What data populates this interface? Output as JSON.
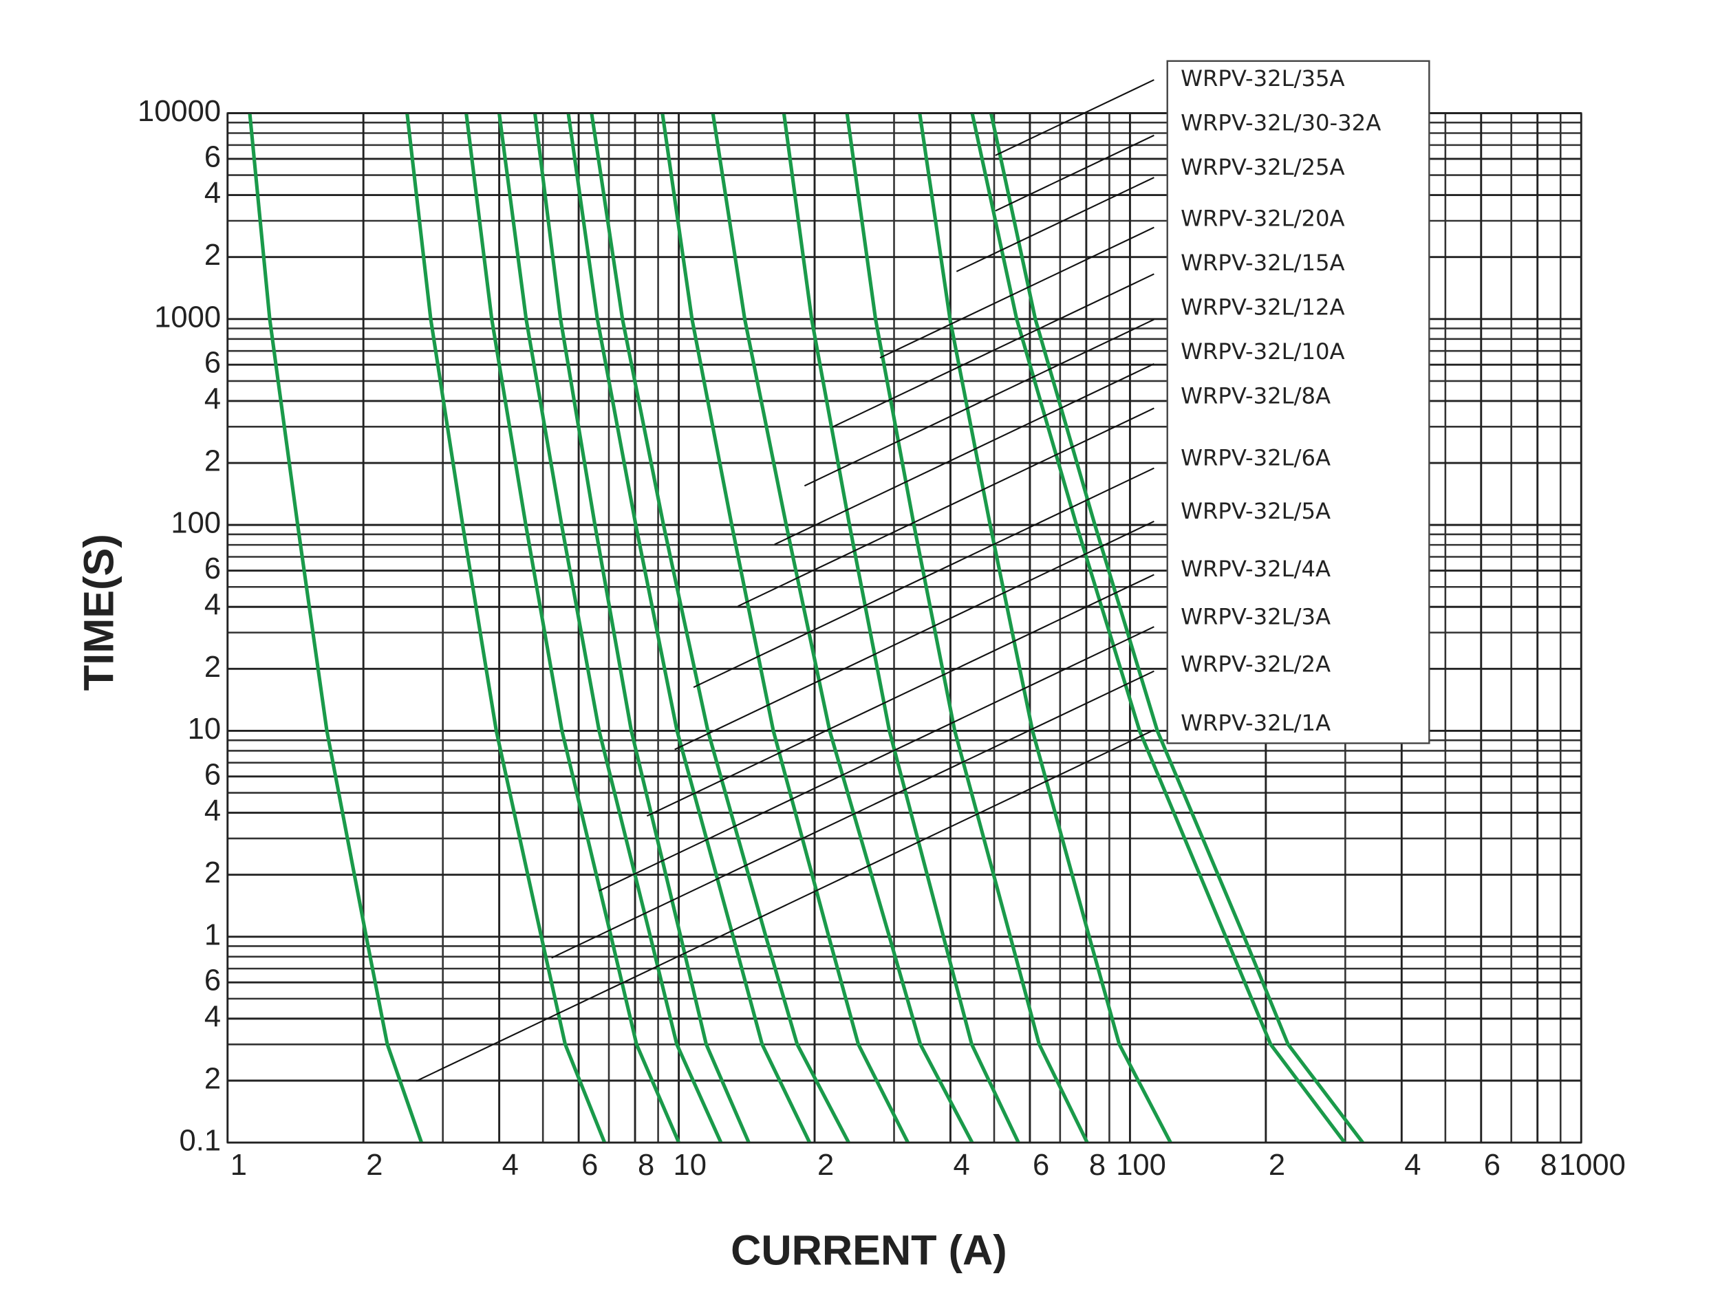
{
  "chart_data": {
    "type": "line",
    "xlabel": "CURRENT (A)",
    "ylabel": "TIME(S)",
    "xscale": "log",
    "yscale": "log",
    "grid": true,
    "xlim": [
      1,
      1000
    ],
    "ylim": [
      0.1,
      10000
    ],
    "xticks": [
      1,
      2,
      4,
      6,
      8,
      10,
      {
        "value": 20,
        "label": "2"
      },
      {
        "value": 40,
        "label": "4"
      },
      {
        "value": 60,
        "label": "6"
      },
      {
        "value": 80,
        "label": "8"
      },
      100,
      {
        "value": 200,
        "label": "2"
      },
      {
        "value": 400,
        "label": "4"
      },
      {
        "value": 600,
        "label": "6"
      },
      {
        "value": 800,
        "label": "8"
      },
      1000
    ],
    "xminor": [
      3,
      5,
      7,
      9,
      30,
      50,
      70,
      90,
      300,
      500,
      700,
      900
    ],
    "yticks": [
      0.1,
      {
        "value": 0.2,
        "label": "2"
      },
      {
        "value": 0.4,
        "label": "4"
      },
      {
        "value": 0.6,
        "label": "6"
      },
      1,
      2,
      4,
      6,
      10,
      {
        "value": 20,
        "label": "2"
      },
      {
        "value": 40,
        "label": "4"
      },
      {
        "value": 60,
        "label": "6"
      },
      100,
      {
        "value": 200,
        "label": "2"
      },
      {
        "value": 400,
        "label": "4"
      },
      {
        "value": 600,
        "label": "6"
      },
      1000,
      {
        "value": 2000,
        "label": "2"
      },
      {
        "value": 4000,
        "label": "4"
      },
      {
        "value": 6000,
        "label": "6"
      },
      10000
    ],
    "yminor": [
      0.3,
      0.5,
      0.7,
      0.8,
      0.9,
      3,
      5,
      7,
      8,
      9,
      30,
      50,
      70,
      80,
      90,
      300,
      500,
      700,
      800,
      900,
      3000,
      5000,
      7000,
      8000,
      9000
    ],
    "series": [
      {
        "name": "WRPV-32L/1A",
        "color": "#1a9a4a",
        "x": [
          1.12,
          1.24,
          1.43,
          1.66,
          2.03,
          2.26,
          2.69
        ],
        "values": [
          10000,
          1000,
          100,
          10,
          1,
          0.3,
          0.1
        ]
      },
      {
        "name": "WRPV-32L/2A",
        "color": "#1a9a4a",
        "x": [
          2.5,
          2.82,
          3.32,
          3.94,
          4.96,
          5.6,
          6.85
        ],
        "values": [
          10000,
          1000,
          100,
          10,
          1,
          0.3,
          0.1
        ]
      },
      {
        "name": "WRPV-32L/3A",
        "color": "#1a9a4a",
        "x": [
          3.38,
          3.85,
          4.58,
          5.51,
          7.08,
          8.06,
          10
        ],
        "values": [
          10000,
          1000,
          100,
          10,
          1,
          0.3,
          0.1
        ]
      },
      {
        "name": "WRPV-32L/4A",
        "color": "#1a9a4a",
        "x": [
          4,
          4.59,
          5.5,
          6.66,
          8.65,
          9.9,
          12.4
        ],
        "values": [
          10000,
          1000,
          100,
          10,
          1,
          0.3,
          0.1
        ]
      },
      {
        "name": "WRPV-32L/5A",
        "color": "#1a9a4a",
        "x": [
          4.8,
          5.47,
          6.52,
          7.85,
          10.1,
          11.5,
          14.3
        ],
        "values": [
          10000,
          1000,
          100,
          10,
          1,
          0.3,
          0.1
        ]
      },
      {
        "name": "WRPV-32L/6A",
        "color": "#1a9a4a",
        "x": [
          5.69,
          6.6,
          8.03,
          9.91,
          13.2,
          15.3,
          19.5
        ],
        "values": [
          10000,
          1000,
          100,
          10,
          1,
          0.3,
          0.1
        ]
      },
      {
        "name": "WRPV-32L/8A",
        "color": "#1a9a4a",
        "x": [
          6.41,
          7.5,
          9.25,
          11.6,
          15.6,
          18.3,
          23.8
        ],
        "values": [
          10000,
          1000,
          100,
          10,
          1,
          0.3,
          0.1
        ]
      },
      {
        "name": "WRPV-32L/10A",
        "color": "#1a9a4a",
        "x": [
          9.2,
          10.7,
          13.1,
          16.2,
          21.5,
          25,
          32.2
        ],
        "values": [
          10000,
          1000,
          100,
          10,
          1,
          0.3,
          0.1
        ]
      },
      {
        "name": "WRPV-32L/12A",
        "color": "#1a9a4a",
        "x": [
          11.9,
          14,
          17.3,
          21.6,
          29.3,
          34.3,
          44.7
        ],
        "values": [
          10000,
          1000,
          100,
          10,
          1,
          0.3,
          0.1
        ]
      },
      {
        "name": "WRPV-32L/15A",
        "color": "#1a9a4a",
        "x": [
          17.1,
          19.7,
          23.9,
          29.3,
          38.6,
          44.6,
          56.6
        ],
        "values": [
          10000,
          1000,
          100,
          10,
          1,
          0.3,
          0.1
        ]
      },
      {
        "name": "WRPV-32L/20A",
        "color": "#1a9a4a",
        "x": [
          23.6,
          27.3,
          33.2,
          40.9,
          54.3,
          62.9,
          80.4
        ],
        "values": [
          10000,
          1000,
          100,
          10,
          1,
          0.3,
          0.1
        ]
      },
      {
        "name": "WRPV-32L/25A",
        "color": "#1a9a4a",
        "x": [
          34.2,
          39.9,
          49,
          60.8,
          81.2,
          94.7,
          123
        ],
        "values": [
          10000,
          1000,
          100,
          10,
          1,
          0.3,
          0.1
        ]
      },
      {
        "name": "WRPV-32L/30-32A",
        "color": "#1a9a4a",
        "x": [
          44.7,
          56.1,
          76.1,
          105,
          163,
          205,
          299
        ],
        "values": [
          10000,
          1000,
          100,
          10,
          1,
          0.3,
          0.1
        ]
      },
      {
        "name": "WRPV-32L/35A",
        "color": "#1a9a4a",
        "x": [
          49.2,
          61.7,
          83.6,
          115,
          179,
          224,
          328
        ],
        "values": [
          10000,
          1000,
          100,
          10,
          1,
          0.3,
          0.1
        ]
      }
    ]
  }
}
